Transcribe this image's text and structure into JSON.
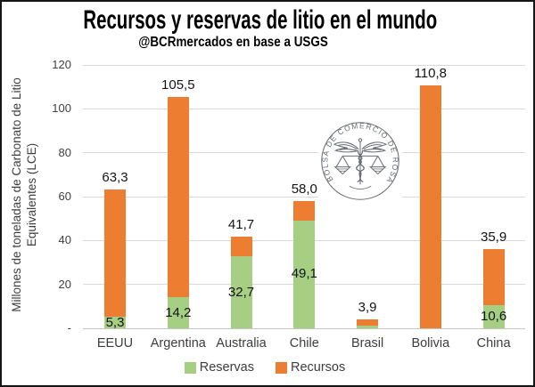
{
  "title": "Recursos y reservas de litio en el mundo",
  "subtitle": "@BCRmercados en base a USGS",
  "watermark_text": "BOLSA DE COMERCIO DE ROSARIO",
  "colors": {
    "reservas": "#a6cf84",
    "recursos": "#ed7d31",
    "gridline": "#d9d9d9",
    "axis_line": "#c6c6c6",
    "tick_text": "#404040",
    "value_text": "#141414",
    "watermark": "#565b61"
  },
  "chart_data": {
    "type": "bar",
    "stacked": true,
    "title": "Recursos y reservas de litio en el mundo",
    "subtitle": "@BCRmercados en base a USGS",
    "ylabel_line1": "Millones de toneladas de Carbonato de Litio",
    "ylabel_line2": "Equivalentes (LCE)",
    "xlabel": "",
    "ylim": [
      0,
      120
    ],
    "grid": true,
    "legend_position": "bottom",
    "yticks": {
      "values": [
        0,
        20,
        40,
        60,
        80,
        100,
        120
      ],
      "labels": [
        "-",
        "20",
        "40",
        "60",
        "80",
        "100",
        "120"
      ]
    },
    "categories": [
      "EEUU",
      "Argentina",
      "Australia",
      "Chile",
      "Brasil",
      "Bolivia",
      "China"
    ],
    "series": [
      {
        "name": "Reservas",
        "color": "#a6cf84",
        "values": [
          5.3,
          14.2,
          32.7,
          49.1,
          1.2,
          0,
          10.6
        ],
        "value_labels": [
          "5,3",
          "14,2",
          "32,7",
          "49,1",
          "",
          "",
          "10,6"
        ]
      },
      {
        "name": "Recursos",
        "color": "#ed7d31",
        "values": [
          58.0,
          91.3,
          9.0,
          8.9,
          2.7,
          110.8,
          25.3
        ],
        "value_labels": [
          "",
          "",
          "",
          "",
          "",
          "",
          ""
        ]
      }
    ],
    "totals": [
      63.3,
      105.5,
      41.7,
      58.0,
      3.9,
      110.8,
      35.9
    ],
    "total_labels": [
      "63,3",
      "105,5",
      "41,7",
      "58,0",
      "3,9",
      "110,8",
      "35,9"
    ]
  }
}
